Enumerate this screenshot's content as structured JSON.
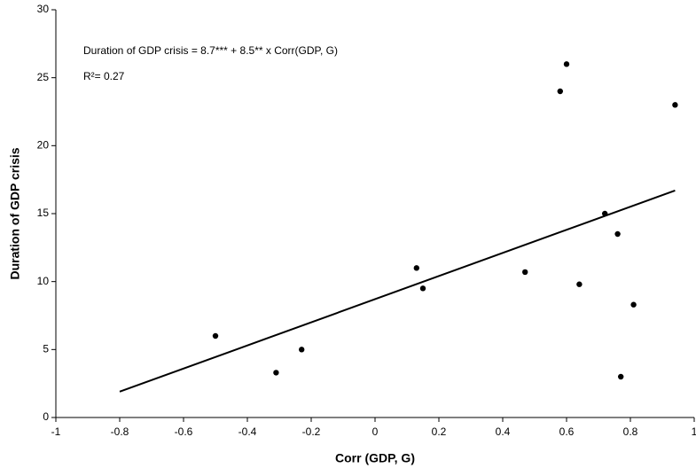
{
  "chart_data": {
    "type": "scatter",
    "annotations": [
      "Duration of GDP crisis = 8.7*** + 8.5** x Corr(GDP, G)",
      "R²= 0.27"
    ],
    "x_label": "Corr (GDP, G)",
    "y_label": "Duration of GDP crisis",
    "x": [
      -0.5,
      -0.31,
      -0.23,
      0.13,
      0.15,
      0.47,
      0.58,
      0.6,
      0.64,
      0.72,
      0.76,
      0.77,
      0.81,
      0.94
    ],
    "values": [
      6,
      3.3,
      5,
      11,
      9.5,
      10.7,
      24,
      26,
      9.8,
      15,
      13.5,
      3,
      8.3,
      23
    ],
    "color": "#000000",
    "trendline": {
      "x": [
        -0.8,
        0.94
      ],
      "y": [
        1.9,
        16.7
      ]
    },
    "xlim": [
      -1,
      1
    ],
    "xticks": [
      -1,
      -0.8,
      -0.6,
      -0.4,
      -0.2,
      0,
      0.2,
      0.4,
      0.6,
      0.8,
      1
    ],
    "ylim": [
      0,
      30
    ],
    "yticks": [
      0,
      5,
      10,
      15,
      20,
      25,
      30
    ]
  }
}
